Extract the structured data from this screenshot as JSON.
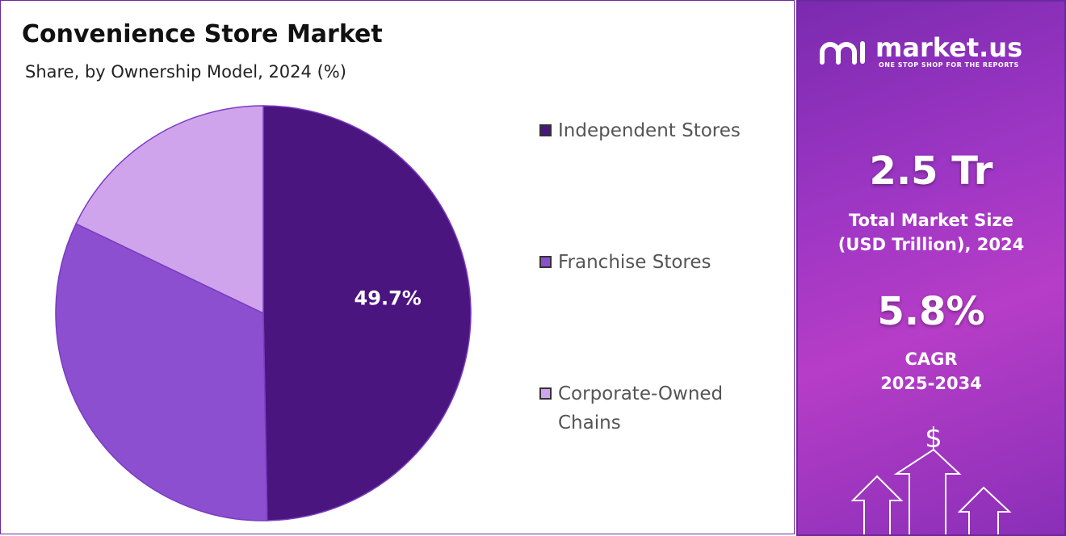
{
  "chart_data": {
    "type": "pie",
    "title": "Convenience Store Market",
    "subtitle": "Share, by Ownership Model, 2024 (%)",
    "categories": [
      "Independent Stores",
      "Franchise Stores",
      "Corporate-Owned Chains"
    ],
    "values": [
      49.7,
      32.4,
      17.9
    ],
    "value_labels": [
      "49.7%",
      null,
      null
    ],
    "colors": [
      "#4b1580",
      "#8b4fd0",
      "#d0a4ec"
    ],
    "legend": "right"
  },
  "side_panel": {
    "brand": "market.us",
    "tagline": "ONE STOP SHOP FOR THE REPORTS",
    "market_size": "2.5 Tr",
    "market_size_label": "Total Market Size (USD Trillion), 2024",
    "cagr": "5.8%",
    "cagr_label": "CAGR",
    "cagr_period": "2025-2034"
  }
}
